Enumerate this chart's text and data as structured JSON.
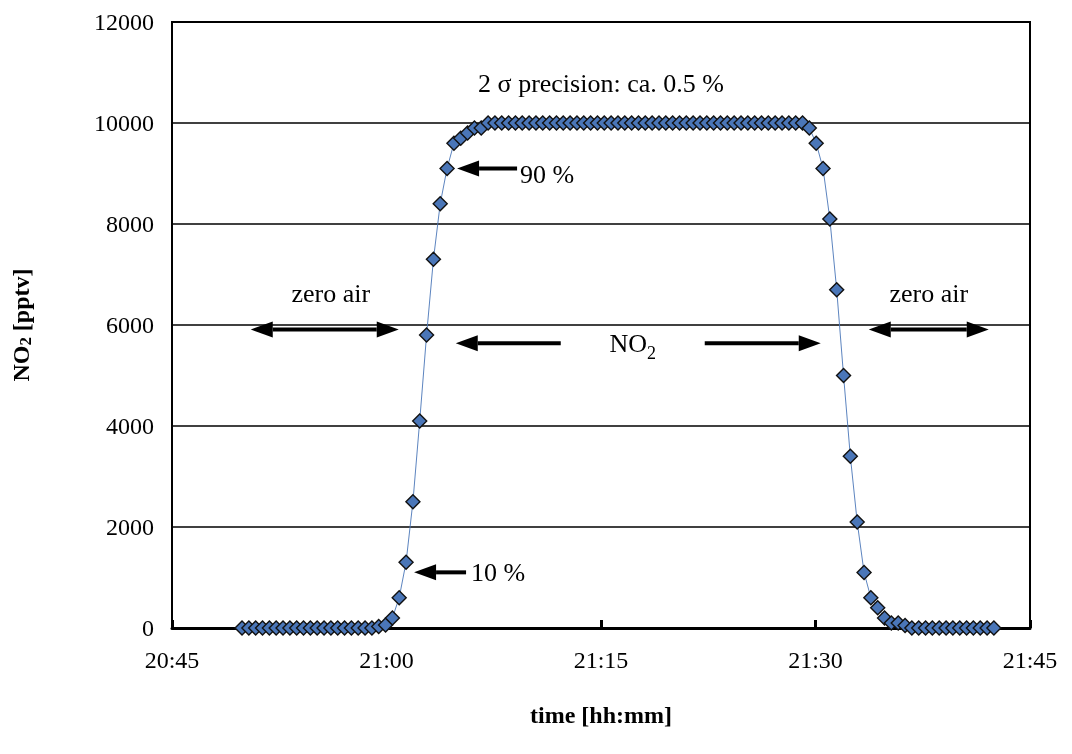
{
  "chart_data": {
    "xlabel": "time [hh:mm]",
    "ylabel": "NO$_{2}$ [pptv]",
    "xlim": [
      20.75,
      21.75
    ],
    "xticks": [
      {
        "value": 20.75,
        "label": "20:45"
      },
      {
        "value": 21,
        "label": "21:00"
      },
      {
        "value": 21.25,
        "label": "21:15"
      },
      {
        "value": 21.5,
        "label": "21:30"
      },
      {
        "value": 21.75,
        "label": "21:45"
      }
    ],
    "ylim": [
      0,
      12000
    ],
    "yticks": [
      0,
      2000,
      4000,
      6000,
      8000,
      10000,
      12000
    ],
    "grid": "y",
    "legend": false,
    "marker": "diamond",
    "line_style": "solid",
    "type": "line",
    "series": [
      {
        "color": "#4a76b8",
        "x": [
          20.8316,
          20.8396,
          20.8475,
          20.8555,
          20.8635,
          20.8714,
          20.8794,
          20.8874,
          20.8953,
          20.9033,
          20.9113,
          20.9192,
          20.9272,
          20.9352,
          20.9431,
          20.9511,
          20.9591,
          20.967,
          20.975,
          20.983,
          20.9909,
          20.9989,
          21.0069,
          21.0148,
          21.0228,
          21.0308,
          21.0387,
          21.0467,
          21.0547,
          21.0626,
          21.0706,
          21.0786,
          21.0865,
          21.0945,
          21.1025,
          21.1104,
          21.1184,
          21.1264,
          21.1343,
          21.1423,
          21.1503,
          21.1582,
          21.1662,
          21.1742,
          21.1821,
          21.1901,
          21.1981,
          21.206,
          21.214,
          21.222,
          21.2299,
          21.2379,
          21.2459,
          21.2538,
          21.2618,
          21.2698,
          21.2777,
          21.2857,
          21.2937,
          21.3016,
          21.3096,
          21.3176,
          21.3255,
          21.3335,
          21.3415,
          21.3494,
          21.3574,
          21.3654,
          21.3733,
          21.3813,
          21.3893,
          21.3972,
          21.4052,
          21.4132,
          21.4211,
          21.4291,
          21.4371,
          21.445,
          21.453,
          21.461,
          21.4689,
          21.4769,
          21.4849,
          21.4928,
          21.5008,
          21.5088,
          21.5167,
          21.5247,
          21.5327,
          21.5406,
          21.5486,
          21.5566,
          21.5645,
          21.5725,
          21.5805,
          21.5884,
          21.5964,
          21.6044,
          21.6123,
          21.6203,
          21.6283,
          21.6362,
          21.6442,
          21.6522,
          21.6601,
          21.6681,
          21.6761,
          21.684,
          21.692,
          21.7,
          21.7079
        ],
        "values": [
          0,
          0,
          0,
          0,
          0,
          0,
          0,
          0,
          0,
          0,
          0,
          0,
          0,
          0,
          0,
          0,
          0,
          0,
          0,
          0,
          30,
          60,
          200,
          600,
          1300,
          2500,
          4100,
          5800,
          7300,
          8400,
          9100,
          9600,
          9700,
          9800,
          9900,
          9900,
          10000,
          10000,
          10000,
          10000,
          10000,
          10000,
          10000,
          10000,
          10000,
          10000,
          10000,
          10000,
          10000,
          10000,
          10000,
          10000,
          10000,
          10000,
          10000,
          10000,
          10000,
          10000,
          10000,
          10000,
          10000,
          10000,
          10000,
          10000,
          10000,
          10000,
          10000,
          10000,
          10000,
          10000,
          10000,
          10000,
          10000,
          10000,
          10000,
          10000,
          10000,
          10000,
          10000,
          10000,
          10000,
          10000,
          10000,
          9900,
          9600,
          9100,
          8100,
          6700,
          5000,
          3400,
          2100,
          1100,
          600,
          400,
          200,
          100,
          100,
          50,
          0,
          0,
          0,
          0,
          0,
          0,
          0,
          0,
          0,
          0,
          0,
          0,
          0
        ]
      }
    ],
    "annotations": [
      "2 σ precision: ca. 0.5 %",
      {
        "text": "90 %",
        "x": 21.0706,
        "y": 9100
      },
      {
        "text": "10 %",
        "x": 21.0228,
        "y": 1300
      },
      "zero air",
      "NO$_{2}$",
      "zero air"
    ]
  }
}
